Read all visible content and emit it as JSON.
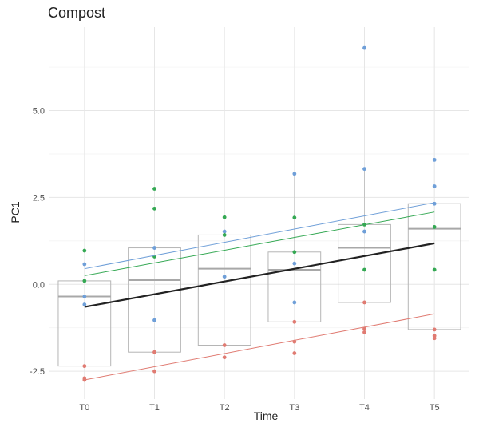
{
  "chart_data": {
    "type": "box",
    "title": "Compost",
    "xlabel": "Time",
    "ylabel": "PC1",
    "categories": [
      "T0",
      "T1",
      "T2",
      "T3",
      "T4",
      "T5"
    ],
    "ylim": [
      -3.3,
      7.4
    ],
    "yticks": [
      -2.5,
      0.0,
      2.5,
      5.0
    ],
    "ytick_labels": [
      "-2.5",
      "0.0",
      "2.5",
      "5.0"
    ],
    "grid": true,
    "legend": "none",
    "boxes": [
      {
        "category": "T0",
        "q1": -2.35,
        "median": -0.35,
        "q3": 0.1
      },
      {
        "category": "T1",
        "q1": -1.95,
        "median": 0.12,
        "q3": 1.05
      },
      {
        "category": "T2",
        "q1": -1.75,
        "median": 0.45,
        "q3": 1.42
      },
      {
        "category": "T3",
        "q1": -1.08,
        "median": 0.42,
        "q3": 0.93
      },
      {
        "category": "T4",
        "q1": -0.52,
        "median": 1.05,
        "q3": 1.72
      },
      {
        "category": "T5",
        "q1": -1.3,
        "median": 1.6,
        "q3": 2.32
      }
    ],
    "whiskers": [
      {
        "category": "T0",
        "low": -2.35,
        "high": 0.1
      },
      {
        "category": "T1",
        "low": -1.95,
        "high": 1.05
      },
      {
        "category": "T2",
        "low": -1.75,
        "high": 1.42
      },
      {
        "category": "T3",
        "low": -1.08,
        "high": 3.18
      },
      {
        "category": "T4",
        "low": -0.52,
        "high": 3.32
      },
      {
        "category": "T5",
        "low": -1.3,
        "high": 2.32
      }
    ],
    "point_groups": [
      {
        "color": "#6f9fd8",
        "points": [
          {
            "x": "T0",
            "y": 0.58
          },
          {
            "x": "T0",
            "y": -0.35
          },
          {
            "x": "T0",
            "y": -0.58
          },
          {
            "x": "T1",
            "y": 1.05
          },
          {
            "x": "T1",
            "y": -1.03
          },
          {
            "x": "T2",
            "y": 1.52
          },
          {
            "x": "T2",
            "y": 0.22
          },
          {
            "x": "T3",
            "y": 3.18
          },
          {
            "x": "T3",
            "y": 0.6
          },
          {
            "x": "T3",
            "y": -0.52
          },
          {
            "x": "T4",
            "y": 6.8
          },
          {
            "x": "T4",
            "y": 3.32
          },
          {
            "x": "T4",
            "y": 1.52
          },
          {
            "x": "T5",
            "y": 3.58
          },
          {
            "x": "T5",
            "y": 2.82
          },
          {
            "x": "T5",
            "y": 2.32
          }
        ]
      },
      {
        "color": "#34a853",
        "points": [
          {
            "x": "T0",
            "y": 0.97
          },
          {
            "x": "T0",
            "y": 0.1
          },
          {
            "x": "T1",
            "y": 2.75
          },
          {
            "x": "T1",
            "y": 2.18
          },
          {
            "x": "T1",
            "y": 0.8
          },
          {
            "x": "T2",
            "y": 1.93
          },
          {
            "x": "T2",
            "y": 1.42
          },
          {
            "x": "T3",
            "y": 1.92
          },
          {
            "x": "T3",
            "y": 0.93
          },
          {
            "x": "T4",
            "y": 1.72
          },
          {
            "x": "T4",
            "y": 0.42
          },
          {
            "x": "T5",
            "y": 1.65
          },
          {
            "x": "T5",
            "y": 0.42
          }
        ]
      },
      {
        "color": "#e07b72",
        "points": [
          {
            "x": "T0",
            "y": -2.35
          },
          {
            "x": "T0",
            "y": -2.7
          },
          {
            "x": "T0",
            "y": -2.75
          },
          {
            "x": "T1",
            "y": -1.95
          },
          {
            "x": "T1",
            "y": -2.5
          },
          {
            "x": "T2",
            "y": -1.75
          },
          {
            "x": "T2",
            "y": -2.1
          },
          {
            "x": "T3",
            "y": -1.08
          },
          {
            "x": "T3",
            "y": -1.65
          },
          {
            "x": "T3",
            "y": -1.98
          },
          {
            "x": "T4",
            "y": -0.52
          },
          {
            "x": "T4",
            "y": -1.28
          },
          {
            "x": "T4",
            "y": -1.38
          },
          {
            "x": "T5",
            "y": -1.3
          },
          {
            "x": "T5",
            "y": -1.48
          },
          {
            "x": "T5",
            "y": -1.55
          }
        ]
      }
    ],
    "trend_lines": [
      {
        "color": "#6f9fd8",
        "from": {
          "x": "T0",
          "y": 0.45
        },
        "to": {
          "x": "T5",
          "y": 2.35
        }
      },
      {
        "color": "#34a853",
        "from": {
          "x": "T0",
          "y": 0.25
        },
        "to": {
          "x": "T5",
          "y": 2.08
        }
      },
      {
        "color": "#e07b72",
        "from": {
          "x": "T0",
          "y": -2.75
        },
        "to": {
          "x": "T5",
          "y": -0.85
        }
      },
      {
        "color": "#222222",
        "from": {
          "x": "T0",
          "y": -0.65
        },
        "to": {
          "x": "T5",
          "y": 1.18
        }
      }
    ]
  }
}
